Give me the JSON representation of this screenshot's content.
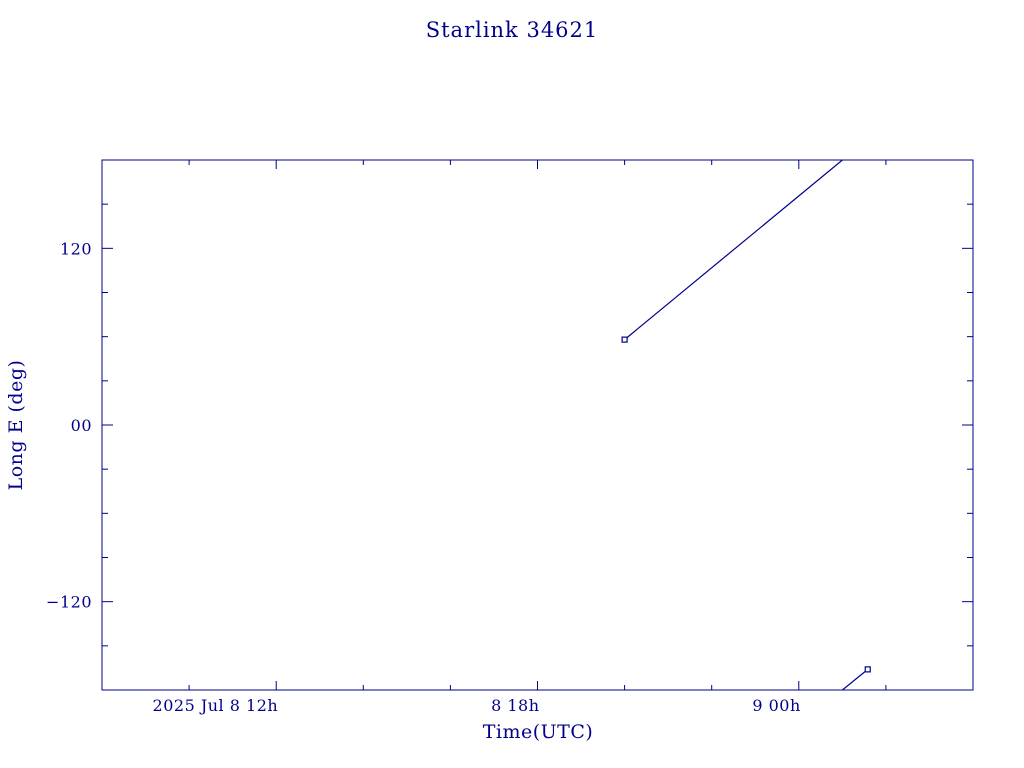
{
  "chart_data": {
    "type": "line",
    "title": "Starlink 34621",
    "xlabel": "Time(UTC)",
    "ylabel": "Long E (deg)",
    "x_range": [
      "2025-07-08T08:00Z",
      "2025-07-09T04:00Z"
    ],
    "ylim": [
      -180,
      180
    ],
    "x_tick_labels": [
      {
        "t": "2025-07-08T12:00Z",
        "label": "2025 Jul  8  12h"
      },
      {
        "t": "2025-07-08T18:00Z",
        "label": "8  18h"
      },
      {
        "t": "2025-07-09T00:00Z",
        "label": "9  00h"
      }
    ],
    "y_tick_labels": [
      {
        "value": 120,
        "label": "120"
      },
      {
        "value": 0,
        "label": "00"
      },
      {
        "value": -120,
        "label": "−120"
      }
    ],
    "series": [
      {
        "points": [
          {
            "t": "2025-07-08T20:00Z",
            "lon": 58
          },
          {
            "t": "2025-07-09T01:00Z",
            "lon": 180
          }
        ]
      },
      {
        "points": [
          {
            "t": "2025-07-09T01:00Z",
            "lon": -180
          },
          {
            "t": "2025-07-09T01:35Z",
            "lon": -166
          }
        ]
      }
    ],
    "markers": [
      {
        "t": "2025-07-08T20:00Z",
        "lon": 58
      },
      {
        "t": "2025-07-09T01:35Z",
        "lon": -166
      }
    ],
    "grid": false,
    "legend": "none",
    "color": "#00008b"
  }
}
